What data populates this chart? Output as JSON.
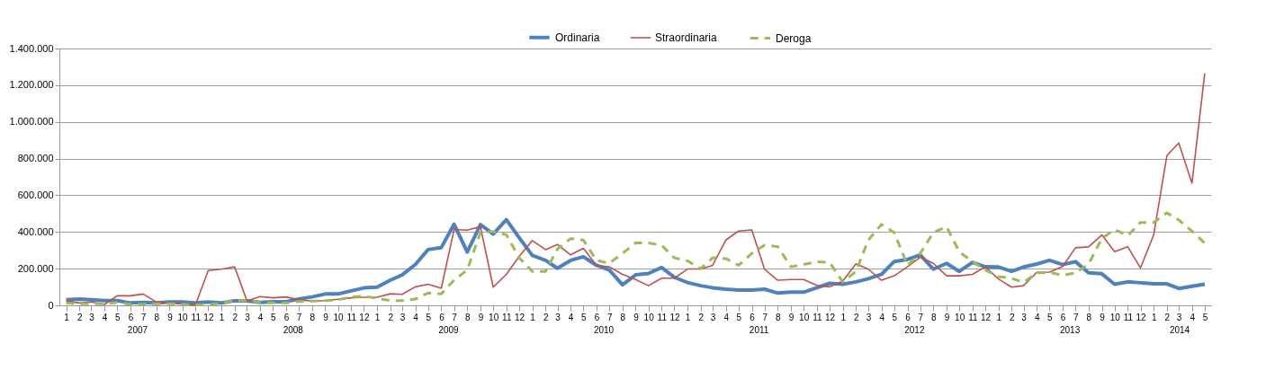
{
  "chart_data": {
    "type": "line",
    "x": [
      "2007-01",
      "2007-02",
      "2007-03",
      "2007-04",
      "2007-05",
      "2007-06",
      "2007-07",
      "2007-08",
      "2007-09",
      "2007-10",
      "2007-11",
      "2007-12",
      "2008-01",
      "2008-02",
      "2008-03",
      "2008-04",
      "2008-05",
      "2008-06",
      "2008-07",
      "2008-08",
      "2008-09",
      "2008-10",
      "2008-11",
      "2008-12",
      "2009-01",
      "2009-02",
      "2009-03",
      "2009-04",
      "2009-05",
      "2009-06",
      "2009-07",
      "2009-08",
      "2009-09",
      "2009-10",
      "2009-11",
      "2009-12",
      "2010-01",
      "2010-02",
      "2010-03",
      "2010-04",
      "2010-05",
      "2010-06",
      "2010-07",
      "2010-08",
      "2010-09",
      "2010-10",
      "2010-11",
      "2010-12",
      "2011-01",
      "2011-02",
      "2011-03",
      "2011-04",
      "2011-05",
      "2011-06",
      "2011-07",
      "2011-08",
      "2011-09",
      "2011-10",
      "2011-11",
      "2011-12",
      "2012-01",
      "2012-02",
      "2012-03",
      "2012-04",
      "2012-05",
      "2012-06",
      "2012-07",
      "2012-08",
      "2012-09",
      "2012-10",
      "2012-11",
      "2012-12",
      "2013-01",
      "2013-02",
      "2013-03",
      "2013-04",
      "2013-05",
      "2013-06",
      "2013-07",
      "2013-08",
      "2013-09",
      "2013-10",
      "2013-11",
      "2013-12",
      "2014-01",
      "2014-02",
      "2014-03",
      "2014-04",
      "2014-05"
    ],
    "series": [
      {
        "name": "Ordinaria",
        "color": "#4f81bd",
        "line_style": "solid",
        "values": [
          30000,
          34000,
          30000,
          26000,
          26000,
          13000,
          16000,
          13000,
          18000,
          18000,
          13000,
          18000,
          13000,
          25000,
          25000,
          16000,
          20000,
          20000,
          34000,
          46000,
          62000,
          62000,
          79000,
          95000,
          99000,
          137000,
          166000,
          223000,
          304000,
          315000,
          442000,
          291000,
          440000,
          389000,
          467000,
          369000,
          272000,
          245000,
          202000,
          245000,
          265000,
          218000,
          193000,
          112000,
          166000,
          174000,
          206000,
          153000,
          124000,
          107000,
          96000,
          88000,
          83000,
          83000,
          88000,
          67000,
          72000,
          72000,
          96000,
          120000,
          115000,
          128000,
          145000,
          169000,
          239000,
          250000,
          275000,
          197000,
          229000,
          185000,
          234000,
          210000,
          209000,
          185000,
          209000,
          225000,
          245000,
          222000,
          238000,
          177000,
          172000,
          115000,
          128000,
          123000,
          117000,
          117000,
          92000,
          104000,
          115000
        ]
      },
      {
        "name": "Straordinaria",
        "color": "#c0504d",
        "line_style": "solid",
        "values": [
          25000,
          13000,
          18000,
          5000,
          52000,
          52000,
          62000,
          18000,
          13000,
          8000,
          2000,
          190000,
          197000,
          210000,
          25000,
          48000,
          41000,
          46000,
          30000,
          23000,
          26000,
          33000,
          41000,
          44000,
          44000,
          63000,
          60000,
          101000,
          115000,
          93000,
          413000,
          410000,
          429000,
          99000,
          169000,
          267000,
          353000,
          304000,
          332000,
          275000,
          311000,
          218000,
          210000,
          169000,
          141000,
          107000,
          148000,
          148000,
          198000,
          198000,
          218000,
          356000,
          405000,
          411000,
          197000,
          137000,
          141000,
          141000,
          109000,
          101000,
          132000,
          226000,
          197000,
          137000,
          161000,
          210000,
          263000,
          229000,
          161000,
          161000,
          169000,
          210000,
          144000,
          99000,
          107000,
          180000,
          181000,
          212000,
          314000,
          319000,
          384000,
          293000,
          319000,
          204000,
          384000,
          816000,
          885000,
          666000,
          1265000
        ]
      },
      {
        "name": "Deroga",
        "color": "#9bbb59",
        "line_style": "dashed",
        "values": [
          13000,
          8000,
          8000,
          8000,
          16000,
          5000,
          5000,
          8000,
          8000,
          5000,
          3000,
          3000,
          13000,
          25000,
          26000,
          16000,
          13000,
          13000,
          21000,
          23000,
          26000,
          30000,
          46000,
          50000,
          39000,
          26000,
          26000,
          34000,
          67000,
          63000,
          137000,
          193000,
          397000,
          402000,
          385000,
          259000,
          185000,
          185000,
          307000,
          364000,
          356000,
          245000,
          229000,
          283000,
          340000,
          340000,
          327000,
          259000,
          242000,
          200000,
          259000,
          255000,
          218000,
          283000,
          328000,
          320000,
          210000,
          223000,
          237000,
          234000,
          128000,
          185000,
          356000,
          441000,
          397000,
          218000,
          283000,
          397000,
          429000,
          291000,
          239000,
          193000,
          157000,
          147000,
          125000,
          177000,
          180000,
          164000,
          177000,
          225000,
          364000,
          413000,
          380000,
          452000,
          452000,
          504000,
          465000,
          404000,
          339000
        ]
      }
    ],
    "xlim": [
      "2006-12-16",
      "2014-05-16"
    ],
    "xticks": [
      {
        "value": "2007-01",
        "label": "1"
      },
      {
        "value": "2007-02",
        "label": "2"
      },
      {
        "value": "2007-03",
        "label": "3"
      },
      {
        "value": "2007-04",
        "label": "4"
      },
      {
        "value": "2007-05",
        "label": "5"
      },
      {
        "value": "2007-06",
        "label": "6"
      },
      {
        "value": "2007-07",
        "label": "7"
      },
      {
        "value": "2007-08",
        "label": "8"
      },
      {
        "value": "2007-09",
        "label": "9"
      },
      {
        "value": "2007-10",
        "label": "10"
      },
      {
        "value": "2007-11",
        "label": "11"
      },
      {
        "value": "2007-12",
        "label": "12"
      },
      {
        "value": "2008-01",
        "label": "1"
      },
      {
        "value": "2008-02",
        "label": "2"
      },
      {
        "value": "2008-03",
        "label": "3"
      },
      {
        "value": "2008-04",
        "label": "4"
      },
      {
        "value": "2008-05",
        "label": "5"
      },
      {
        "value": "2008-06",
        "label": "6"
      },
      {
        "value": "2008-07",
        "label": "7"
      },
      {
        "value": "2008-08",
        "label": "8"
      },
      {
        "value": "2008-09",
        "label": "9"
      },
      {
        "value": "2008-10",
        "label": "10"
      },
      {
        "value": "2008-11",
        "label": "11"
      },
      {
        "value": "2008-12",
        "label": "12"
      },
      {
        "value": "2009-01",
        "label": "1"
      },
      {
        "value": "2009-02",
        "label": "2"
      },
      {
        "value": "2009-03",
        "label": "3"
      },
      {
        "value": "2009-04",
        "label": "4"
      },
      {
        "value": "2009-05",
        "label": "5"
      },
      {
        "value": "2009-06",
        "label": "6"
      },
      {
        "value": "2009-07",
        "label": "7"
      },
      {
        "value": "2009-08",
        "label": "8"
      },
      {
        "value": "2009-09",
        "label": "9"
      },
      {
        "value": "2009-10",
        "label": "10"
      },
      {
        "value": "2009-11",
        "label": "11"
      },
      {
        "value": "2009-12",
        "label": "12"
      },
      {
        "value": "2010-01",
        "label": "1"
      },
      {
        "value": "2010-02",
        "label": "2"
      },
      {
        "value": "2010-03",
        "label": "3"
      },
      {
        "value": "2010-04",
        "label": "4"
      },
      {
        "value": "2010-05",
        "label": "5"
      },
      {
        "value": "2010-06",
        "label": "6"
      },
      {
        "value": "2010-07",
        "label": "7"
      },
      {
        "value": "2010-08",
        "label": "8"
      },
      {
        "value": "2010-09",
        "label": "9"
      },
      {
        "value": "2010-10",
        "label": "10"
      },
      {
        "value": "2010-11",
        "label": "11"
      },
      {
        "value": "2010-12",
        "label": "12"
      },
      {
        "value": "2011-01",
        "label": "1"
      },
      {
        "value": "2011-02",
        "label": "2"
      },
      {
        "value": "2011-03",
        "label": "3"
      },
      {
        "value": "2011-04",
        "label": "4"
      },
      {
        "value": "2011-05",
        "label": "5"
      },
      {
        "value": "2011-06",
        "label": "6"
      },
      {
        "value": "2011-07",
        "label": "7"
      },
      {
        "value": "2011-08",
        "label": "8"
      },
      {
        "value": "2011-09",
        "label": "9"
      },
      {
        "value": "2011-10",
        "label": "10"
      },
      {
        "value": "2011-11",
        "label": "11"
      },
      {
        "value": "2011-12",
        "label": "12"
      },
      {
        "value": "2012-01",
        "label": "1"
      },
      {
        "value": "2012-02",
        "label": "2"
      },
      {
        "value": "2012-03",
        "label": "3"
      },
      {
        "value": "2012-04",
        "label": "4"
      },
      {
        "value": "2012-05",
        "label": "5"
      },
      {
        "value": "2012-06",
        "label": "6"
      },
      {
        "value": "2012-07",
        "label": "7"
      },
      {
        "value": "2012-08",
        "label": "8"
      },
      {
        "value": "2012-09",
        "label": "9"
      },
      {
        "value": "2012-10",
        "label": "10"
      },
      {
        "value": "2012-11",
        "label": "11"
      },
      {
        "value": "2012-12",
        "label": "12"
      },
      {
        "value": "2013-01",
        "label": "1"
      },
      {
        "value": "2013-02",
        "label": "2"
      },
      {
        "value": "2013-03",
        "label": "3"
      },
      {
        "value": "2013-04",
        "label": "4"
      },
      {
        "value": "2013-05",
        "label": "5"
      },
      {
        "value": "2013-06",
        "label": "6"
      },
      {
        "value": "2013-07",
        "label": "7"
      },
      {
        "value": "2013-08",
        "label": "8"
      },
      {
        "value": "2013-09",
        "label": "9"
      },
      {
        "value": "2013-10",
        "label": "10"
      },
      {
        "value": "2013-11",
        "label": "11"
      },
      {
        "value": "2013-12",
        "label": "12"
      },
      {
        "value": "2014-01",
        "label": "1"
      },
      {
        "value": "2014-02",
        "label": "2"
      },
      {
        "value": "2014-03",
        "label": "3"
      },
      {
        "value": "2014-04",
        "label": "4"
      },
      {
        "value": "2014-05",
        "label": "5"
      }
    ],
    "annotations": [
      "2007",
      "2008",
      "2009",
      "2010",
      "2011",
      "2012",
      "2013",
      "2014"
    ],
    "ylim": [
      0,
      1400000
    ],
    "yticks": [
      0,
      {
        "value": 200000,
        "label": "200.000"
      },
      {
        "value": 400000,
        "label": "400.000"
      },
      {
        "value": 600000,
        "label": "600.000"
      },
      {
        "value": 800000,
        "label": "800.000"
      },
      {
        "value": 1000000,
        "label": "1.000.000"
      },
      {
        "value": 1200000,
        "label": "1.200.000"
      },
      {
        "value": 1400000,
        "label": "1.400.000"
      }
    ],
    "grid": "y",
    "legend": "top"
  }
}
